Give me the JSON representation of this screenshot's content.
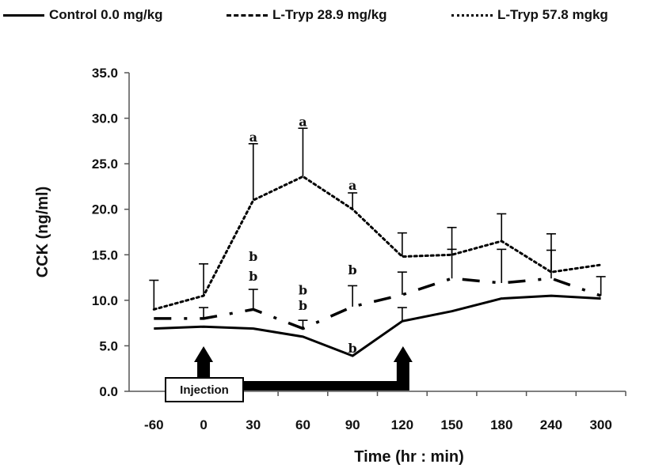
{
  "chart_data": {
    "type": "line",
    "title": "",
    "xlabel": "Time (hr : min)",
    "ylabel": "CCK (ng/ml)",
    "categories": [
      "-60",
      "0",
      "30",
      "60",
      "90",
      "120",
      "150",
      "180",
      "240",
      "300"
    ],
    "ylim": [
      0,
      35
    ],
    "yticks": [
      "0.0",
      "5.0",
      "10.0",
      "15.0",
      "20.0",
      "25.0",
      "30.0",
      "35.0"
    ],
    "grid": false,
    "legend_position": "top",
    "series": [
      {
        "name": "Control 0.0 mg/kg",
        "style": "solid",
        "values": [
          6.9,
          7.1,
          6.9,
          6.0,
          3.9,
          7.7,
          8.8,
          10.2,
          10.5,
          10.2
        ],
        "error": [
          0,
          0,
          0,
          0,
          0,
          1.5,
          0,
          0,
          0,
          0
        ]
      },
      {
        "name": "L-Tryp 28.9 mg/kg",
        "style": "dash",
        "values": [
          8.0,
          8.0,
          9.0,
          6.9,
          9.3,
          10.6,
          12.4,
          11.9,
          12.4,
          10.5
        ],
        "error": [
          0,
          1.2,
          2.2,
          0.9,
          2.3,
          2.5,
          3.2,
          3.7,
          3.1,
          2.1
        ]
      },
      {
        "name": "L-Tryp 57.8 mgkg",
        "style": "dot",
        "values": [
          9.0,
          10.5,
          21.0,
          23.6,
          20.0,
          14.8,
          15.0,
          16.5,
          13.1,
          13.9
        ],
        "error": [
          3.2,
          3.5,
          6.2,
          5.3,
          1.8,
          2.6,
          3.0,
          3.0,
          4.2,
          0
        ]
      }
    ],
    "annotations": [
      {
        "text": "a",
        "x": "30",
        "y": 27.1
      },
      {
        "text": "a",
        "x": "60",
        "y": 28.8
      },
      {
        "text": "a",
        "x": "90",
        "y": 21.8
      },
      {
        "text": "b",
        "x": "30",
        "y": 14.0
      },
      {
        "text": "b",
        "x": "30",
        "y": 11.8
      },
      {
        "text": "b",
        "x": "60",
        "y": 10.3
      },
      {
        "text": "b",
        "x": "60",
        "y": 8.6
      },
      {
        "text": "b",
        "x": "90",
        "y": 12.5
      },
      {
        "text": "b",
        "x": "90",
        "y": 3.9
      }
    ],
    "markers": {
      "injection_label": "Injection",
      "arrows_at": [
        "0",
        "120"
      ]
    }
  }
}
